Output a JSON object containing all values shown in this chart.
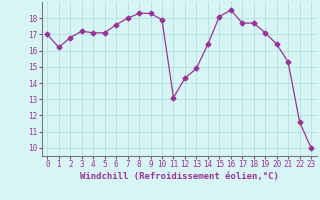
{
  "x": [
    0,
    1,
    2,
    3,
    4,
    5,
    6,
    7,
    8,
    9,
    10,
    11,
    12,
    13,
    14,
    15,
    16,
    17,
    18,
    19,
    20,
    21,
    22,
    23
  ],
  "y": [
    17.0,
    16.2,
    16.8,
    17.2,
    17.1,
    17.1,
    17.6,
    18.0,
    18.3,
    18.3,
    17.9,
    13.1,
    14.3,
    14.9,
    16.4,
    18.1,
    18.5,
    17.7,
    17.7,
    17.1,
    16.4,
    15.3,
    11.6,
    10.0
  ],
  "line_color": "#993399",
  "marker": "D",
  "marker_size": 2.5,
  "bg_color": "#d7f5f5",
  "grid_color": "#aadddd",
  "xlabel": "Windchill (Refroidissement éolien,°C)",
  "ylim": [
    9.5,
    19.0
  ],
  "xlim": [
    -0.5,
    23.5
  ],
  "yticks": [
    10,
    11,
    12,
    13,
    14,
    15,
    16,
    17,
    18
  ],
  "xticks": [
    0,
    1,
    2,
    3,
    4,
    5,
    6,
    7,
    8,
    9,
    10,
    11,
    12,
    13,
    14,
    15,
    16,
    17,
    18,
    19,
    20,
    21,
    22,
    23
  ],
  "axis_color": "#993399",
  "tick_color": "#993399",
  "spine_color": "#777777",
  "xlabel_fontsize": 6.5,
  "tick_fontsize": 5.5
}
